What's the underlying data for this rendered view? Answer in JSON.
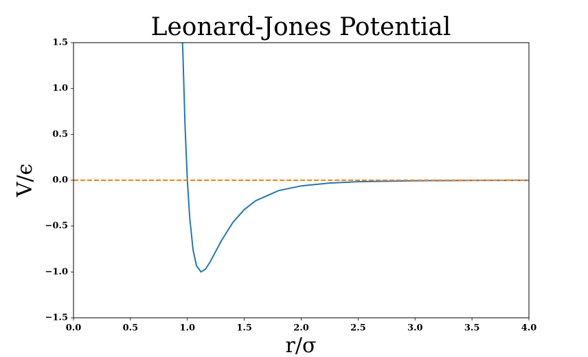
{
  "chart_data": {
    "type": "line",
    "title": "Leonard-Jones Potential",
    "x_label": "r/σ",
    "y_label": "V/ϵ",
    "xlim": [
      0.0,
      4.0
    ],
    "ylim": [
      -1.5,
      1.5
    ],
    "xticks": [
      {
        "value": 0,
        "label": "0.0"
      },
      0.5,
      {
        "value": 1,
        "label": "1.0"
      },
      1.5,
      {
        "value": 2,
        "label": "2.0"
      },
      2.5,
      {
        "value": 3,
        "label": "3.0"
      },
      3.5,
      {
        "value": 4,
        "label": "4.0"
      }
    ],
    "yticks": [
      {
        "value": -1.5,
        "label": "−1.5"
      },
      {
        "value": -1,
        "label": "−1.0"
      },
      {
        "value": -0.5,
        "label": "−0.5"
      },
      {
        "value": 0,
        "label": "0.0"
      },
      0.5,
      {
        "value": 1,
        "label": "1.0"
      },
      1.5
    ],
    "series": [
      {
        "color": "#1f77b4",
        "linestyle": "solid",
        "x": [
          0.957,
          0.96,
          0.98,
          1.0,
          1.02,
          1.05,
          1.08,
          1.12,
          1.16,
          1.2,
          1.25,
          1.3,
          1.4,
          1.5,
          1.6,
          1.8,
          2.0,
          2.25,
          2.5,
          3.0,
          3.5,
          4.0
        ],
        "values": [
          1.5,
          1.418,
          0.582,
          0,
          -0.398,
          -0.758,
          -0.932,
          -1.0,
          -0.968,
          -0.891,
          -0.774,
          -0.657,
          -0.46,
          -0.32,
          -0.224,
          -0.114,
          -0.0615,
          -0.0306,
          -0.0163,
          -0.0055,
          -0.0022,
          -0.001
        ]
      },
      {
        "color": "#ff7f0e",
        "linestyle": "dashed",
        "x": [
          0,
          4
        ],
        "values": [
          0,
          0
        ]
      }
    ]
  }
}
